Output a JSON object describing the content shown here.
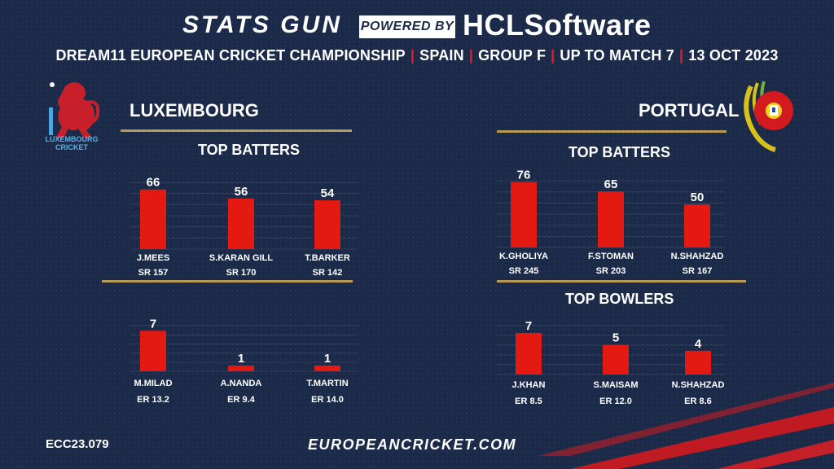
{
  "header": {
    "brand_left": "STATS GUN",
    "powered_by": "POWERED BY",
    "brand_right": "HCLSoftware",
    "subtitle_parts": [
      "DREAM11 EUROPEAN CRICKET CHAMPIONSHIP",
      "SPAIN",
      "GROUP F",
      "UP TO MATCH 7",
      "13 OCT 2023"
    ],
    "separator": "|"
  },
  "colors": {
    "bar": "#e41a12",
    "accent_red": "#e31d23",
    "gold": "#b99a55",
    "background": "#1b2a48"
  },
  "logos": {
    "left": "Luxembourg Cricket crest",
    "left_text": "LUXEMBOURG CRICKET",
    "right": "Portugal cricket crest"
  },
  "teams": {
    "left": {
      "name": "LUXEMBOURG",
      "batters_title": "TOP BATTERS"
    },
    "right": {
      "name": "PORTUGAL",
      "batters_title": "TOP BATTERS",
      "bowlers_title": "TOP BOWLERS"
    }
  },
  "footer": {
    "code": "ECC23.079",
    "url": "EUROPEANCRICKET.COM"
  },
  "chart_data": [
    {
      "type": "bar",
      "team": "LUXEMBOURG",
      "title": "TOP BATTERS",
      "categories": [
        "J.MEES",
        "S.KARAN GILL",
        "T.BARKER"
      ],
      "values": [
        66,
        56,
        54
      ],
      "sublabels": [
        "SR 157",
        "SR 170",
        "SR 142"
      ]
    },
    {
      "type": "bar",
      "team": "LUXEMBOURG",
      "title": "",
      "categories": [
        "M.MILAD",
        "A.NANDA",
        "T.MARTIN"
      ],
      "values": [
        7,
        1,
        1
      ],
      "sublabels": [
        "ER 13.2",
        "ER 9.4",
        "ER 14.0"
      ]
    },
    {
      "type": "bar",
      "team": "PORTUGAL",
      "title": "TOP BATTERS",
      "categories": [
        "K.GHOLIYA",
        "F.STOMAN",
        "N.SHAHZAD"
      ],
      "values": [
        76,
        65,
        50
      ],
      "sublabels": [
        "SR 245",
        "SR 203",
        "SR 167"
      ]
    },
    {
      "type": "bar",
      "team": "PORTUGAL",
      "title": "TOP BOWLERS",
      "categories": [
        "J.KHAN",
        "S.MAISAM",
        "N.SHAHZAD"
      ],
      "values": [
        7,
        5,
        4
      ],
      "sublabels": [
        "ER 8.5",
        "ER 12.0",
        "ER 8.6"
      ]
    }
  ]
}
